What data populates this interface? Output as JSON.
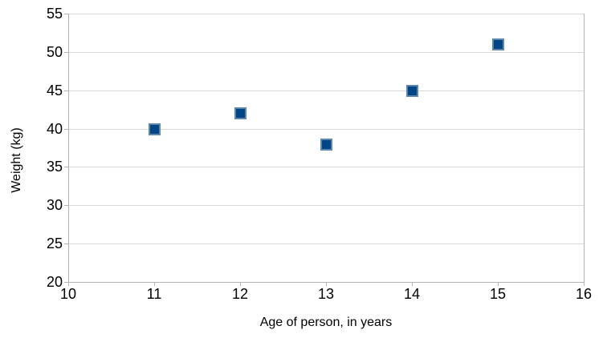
{
  "chart_data": {
    "type": "scatter",
    "title": "",
    "xlabel": "Age of person, in years",
    "ylabel": "Weight (kg)",
    "x": [
      11,
      12,
      13,
      14,
      15
    ],
    "y": [
      40,
      42,
      38,
      45,
      51
    ],
    "xlim": [
      10,
      16
    ],
    "ylim": [
      20,
      55
    ],
    "x_ticks": [
      10,
      11,
      12,
      13,
      14,
      15,
      16
    ],
    "y_ticks": [
      20,
      25,
      30,
      35,
      40,
      45,
      50,
      55
    ],
    "grid": "horizontal-major",
    "legend": "none",
    "marker": "square",
    "colors": {
      "point_fill": "#004586",
      "point_border": "#5e87ae",
      "gridline": "#d9d9d9",
      "axis_line": "#b3b3b3",
      "text": "#000000",
      "background": "#ffffff"
    }
  }
}
